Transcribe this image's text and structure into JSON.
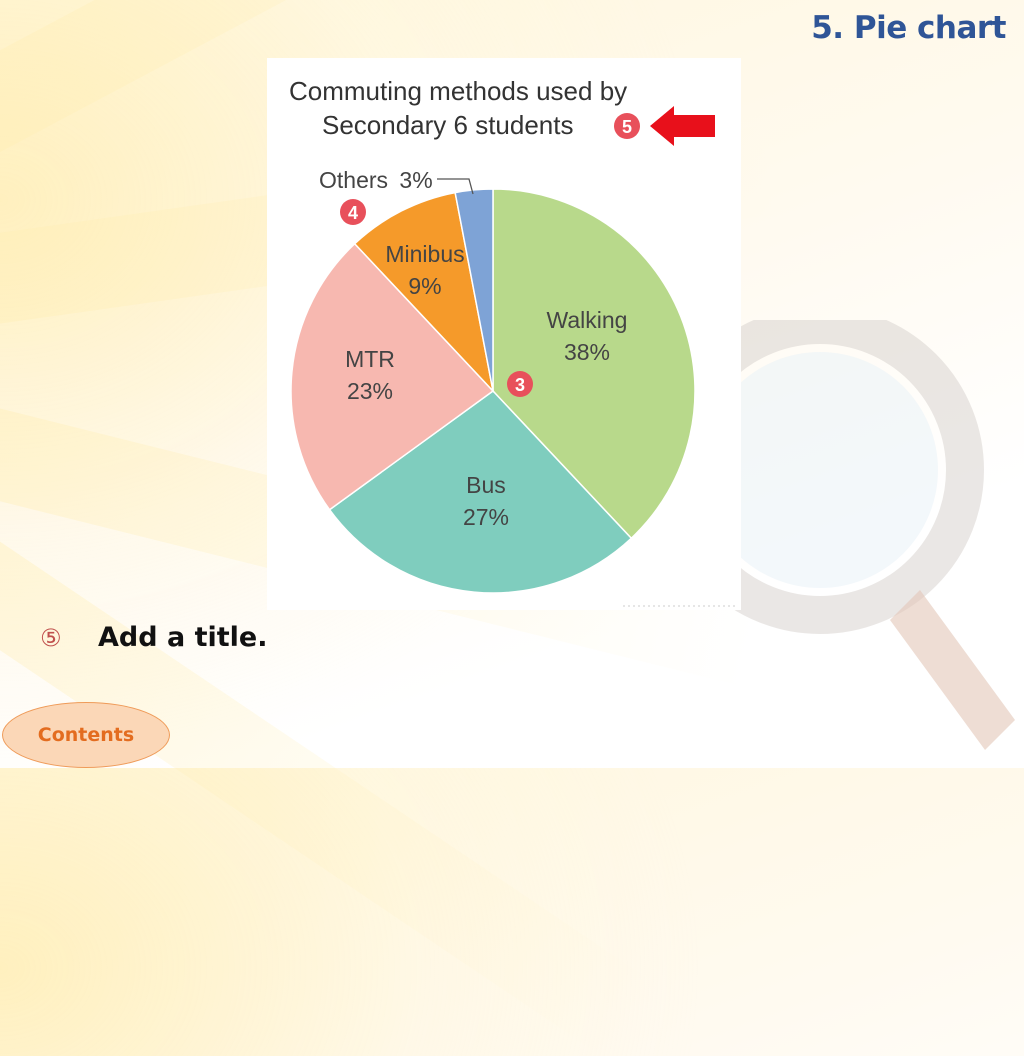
{
  "slide": {
    "title": "5. Pie chart",
    "step_marker": "⑤",
    "step_text": "Add a title.",
    "contents_button": "Contents"
  },
  "figure": {
    "callouts": {
      "title": "5",
      "others_label": "4",
      "slices": "3"
    },
    "colors": {
      "walking": "#b8d98b",
      "bus": "#7fcdbe",
      "mtr": "#f7b8b0",
      "minibus": "#f59a2a",
      "others": "#7ea3d6",
      "callout": "#e8505b",
      "arrow": "#e8101b"
    }
  },
  "chart_data": {
    "type": "pie",
    "title_lines": [
      "Commuting methods used by",
      "Secondary 6 students"
    ],
    "slices": [
      {
        "key": "walking",
        "label": "Walking",
        "value": 38,
        "display": "38%"
      },
      {
        "key": "bus",
        "label": "Bus",
        "value": 27,
        "display": "27%"
      },
      {
        "key": "mtr",
        "label": "MTR",
        "value": 23,
        "display": "23%"
      },
      {
        "key": "minibus",
        "label": "Minibus",
        "value": 9,
        "display": "9%"
      },
      {
        "key": "others",
        "label": "Others",
        "value": 3,
        "display": "3%"
      }
    ],
    "start": "12 o'clock",
    "direction": "clockwise"
  }
}
